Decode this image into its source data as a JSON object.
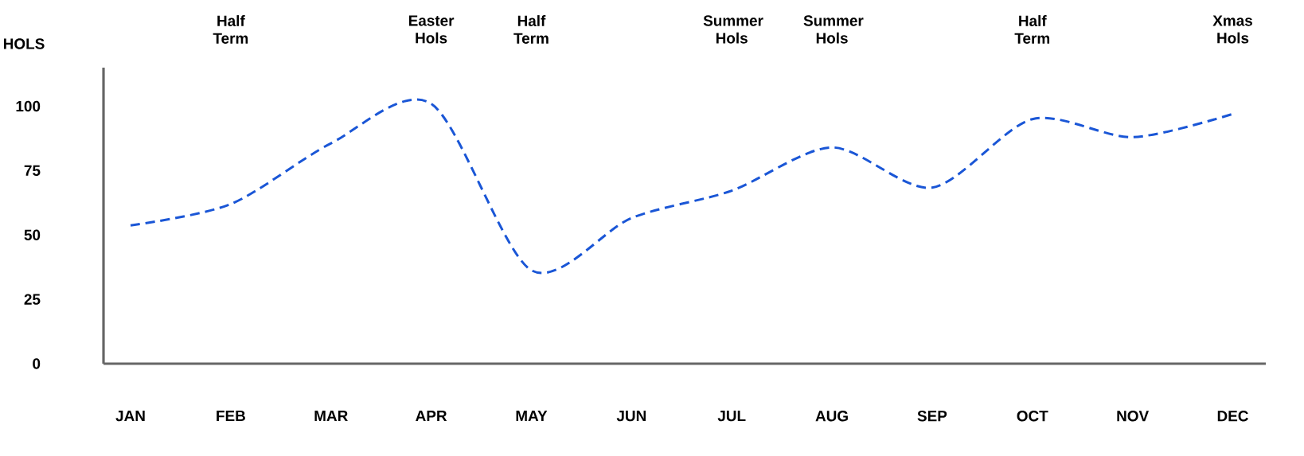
{
  "chart_data": {
    "type": "line",
    "ylabel": "HOLS",
    "categories": [
      "JAN",
      "FEB",
      "MAR",
      "APR",
      "MAY",
      "JUN",
      "JUL",
      "AUG",
      "SEP",
      "OCT",
      "NOV",
      "DEC"
    ],
    "values": [
      53.7,
      62,
      85.6,
      101,
      36.3,
      56.6,
      67.2,
      84,
      68.4,
      95,
      88,
      97
    ],
    "color": "#1a56d6",
    "marker": "none",
    "line_style": "dashed",
    "ylim": [
      0,
      115
    ],
    "yticks": [
      0,
      25,
      50,
      75,
      100
    ],
    "annotations": [
      "Half Term",
      "Easter Hols",
      "Half Term",
      "Summer Hols",
      "Summer Hols",
      "Half Term",
      "Xmas Hols"
    ]
  }
}
